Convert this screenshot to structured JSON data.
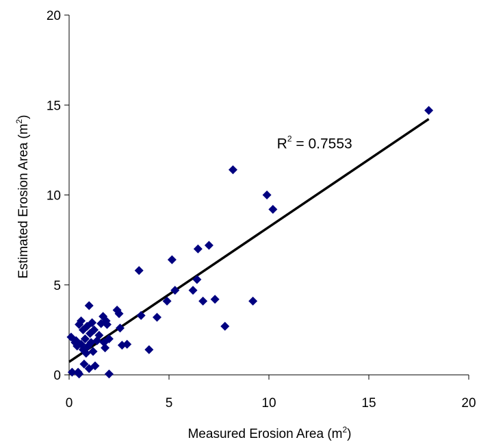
{
  "chart_data": {
    "type": "scatter",
    "title": "",
    "xlabel": "Measured Erosion Area (m",
    "xlabel_sup": "2",
    "xlabel_end": ")",
    "ylabel": "Estimated Erosion Area (m",
    "ylabel_sup": "2",
    "ylabel_end": ")",
    "xlim": [
      0,
      20
    ],
    "ylim": [
      0,
      20
    ],
    "x_ticks": [
      "0",
      "5",
      "10",
      "15",
      "20"
    ],
    "y_ticks": [
      "0",
      "5",
      "10",
      "15",
      "20"
    ],
    "grid": false,
    "legend": "none",
    "marker_color": "#000080",
    "line_color": "#000000",
    "series": [
      {
        "points": [
          [
            0.1,
            2.1
          ],
          [
            0.15,
            0.15
          ],
          [
            0.3,
            1.8
          ],
          [
            0.35,
            1.9
          ],
          [
            0.4,
            1.6
          ],
          [
            0.45,
            0.15
          ],
          [
            0.5,
            0.05
          ],
          [
            0.5,
            2.8
          ],
          [
            0.6,
            3.0
          ],
          [
            0.6,
            1.7
          ],
          [
            0.7,
            2.5
          ],
          [
            0.7,
            1.4
          ],
          [
            0.75,
            0.6
          ],
          [
            0.8,
            2.0
          ],
          [
            0.85,
            1.2
          ],
          [
            0.9,
            2.7
          ],
          [
            0.95,
            1.6
          ],
          [
            1.0,
            0.35
          ],
          [
            1.0,
            3.85
          ],
          [
            1.05,
            2.3
          ],
          [
            1.1,
            1.8
          ],
          [
            1.15,
            2.9
          ],
          [
            1.2,
            1.3
          ],
          [
            1.25,
            2.5
          ],
          [
            1.3,
            0.5
          ],
          [
            1.4,
            1.9
          ],
          [
            1.5,
            2.2
          ],
          [
            1.6,
            2.85
          ],
          [
            1.7,
            3.25
          ],
          [
            1.75,
            1.8
          ],
          [
            1.8,
            1.5
          ],
          [
            1.85,
            3.0
          ],
          [
            1.9,
            2.8
          ],
          [
            2.0,
            2.0
          ],
          [
            2.0,
            0.05
          ],
          [
            2.4,
            3.6
          ],
          [
            2.5,
            3.4
          ],
          [
            2.55,
            2.6
          ],
          [
            2.65,
            1.65
          ],
          [
            2.9,
            1.7
          ],
          [
            3.5,
            5.8
          ],
          [
            3.6,
            3.3
          ],
          [
            4.0,
            1.4
          ],
          [
            4.4,
            3.2
          ],
          [
            4.9,
            4.1
          ],
          [
            5.15,
            6.4
          ],
          [
            5.3,
            4.7
          ],
          [
            6.2,
            4.7
          ],
          [
            6.4,
            5.3
          ],
          [
            6.45,
            7.0
          ],
          [
            6.7,
            4.1
          ],
          [
            7.0,
            7.2
          ],
          [
            7.3,
            4.2
          ],
          [
            7.8,
            2.7
          ],
          [
            8.2,
            11.4
          ],
          [
            9.2,
            4.1
          ],
          [
            9.9,
            10.0
          ],
          [
            10.2,
            9.2
          ],
          [
            18.0,
            14.7
          ]
        ]
      }
    ],
    "trendline": {
      "x_start": 0,
      "x_end": 18,
      "slope": 0.75,
      "intercept": 0.72
    },
    "annotation": {
      "text": "R",
      "sup": "2",
      "rest": " = 0.7553",
      "x": 10.4,
      "y": 12.6
    }
  }
}
